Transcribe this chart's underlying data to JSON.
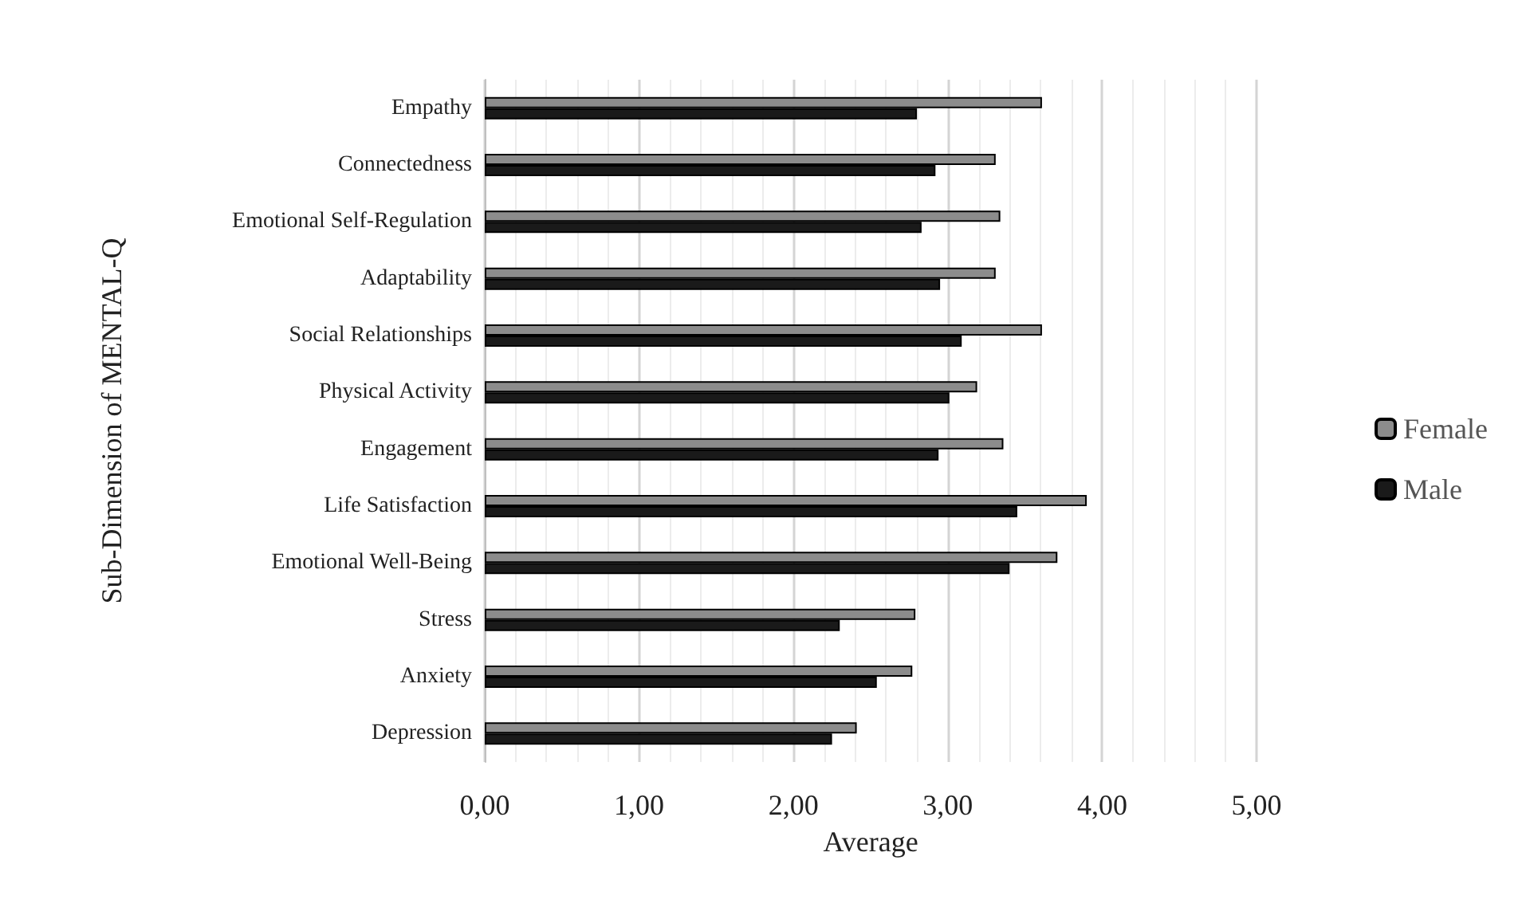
{
  "chart_data": {
    "type": "bar",
    "orientation": "horizontal",
    "xlabel": "Average",
    "ylabel": "Sub-Dimension of MENTAL-Q",
    "categories": [
      "Empathy",
      "Connectedness",
      "Emotional Self-Regulation",
      "Adaptability",
      "Social Relationships",
      "Physical Activity",
      "Engagement",
      "Life Satisfaction",
      "Emotional Well-Being",
      "Stress",
      "Anxiety",
      "Depression"
    ],
    "series": [
      {
        "name": "Female",
        "color": "#8c8c8c",
        "values": [
          3.61,
          3.31,
          3.34,
          3.31,
          3.61,
          3.19,
          3.36,
          3.9,
          3.71,
          2.79,
          2.77,
          2.41
        ]
      },
      {
        "name": "Male",
        "color": "#1a1a1a",
        "values": [
          2.8,
          2.92,
          2.83,
          2.95,
          3.09,
          3.01,
          2.94,
          3.45,
          3.4,
          2.3,
          2.54,
          2.25
        ]
      }
    ],
    "xlim": [
      0,
      5
    ],
    "xticks": [
      {
        "value": 0,
        "label": "0,00"
      },
      {
        "value": 1,
        "label": "1,00"
      },
      {
        "value": 2,
        "label": "2,00"
      },
      {
        "value": 3,
        "label": "3,00"
      },
      {
        "value": 4,
        "label": "4,00"
      },
      {
        "value": 5,
        "label": "5,00"
      }
    ],
    "grid": "x",
    "legend": "right"
  }
}
